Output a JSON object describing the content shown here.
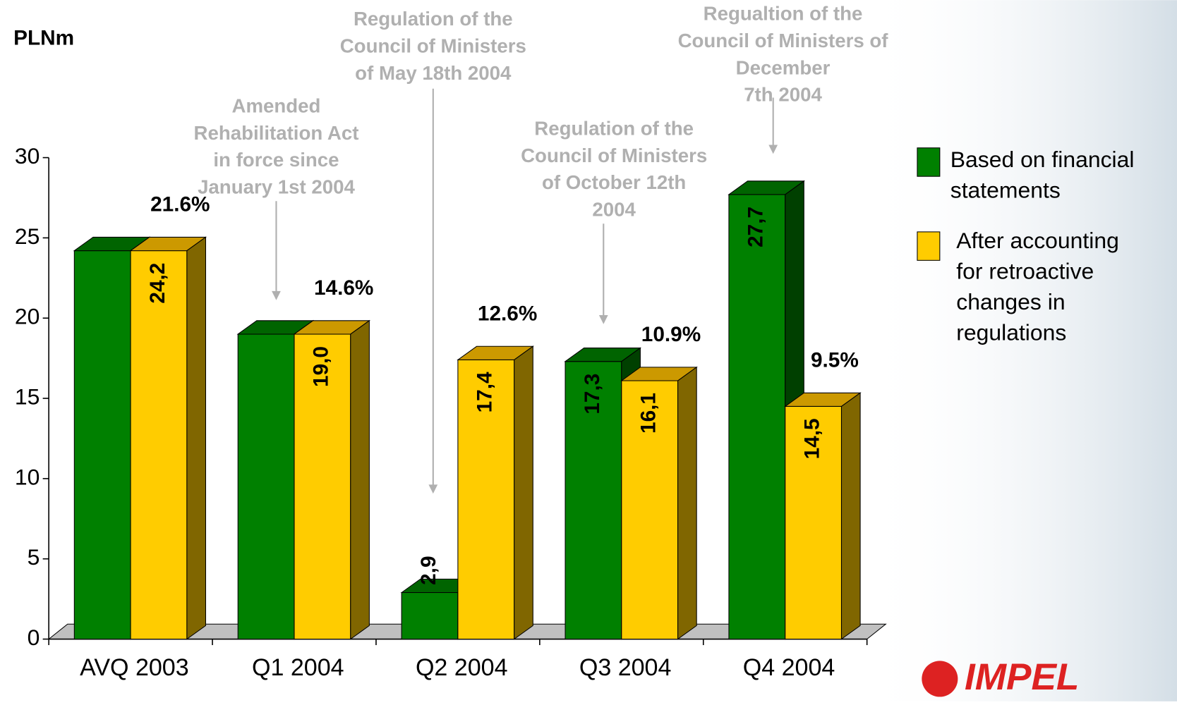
{
  "chart_data": {
    "type": "bar3d",
    "y_label": "PLNm",
    "categories": [
      "AVQ 2003",
      "Q1 2004",
      "Q2 2004",
      "Q3 2004",
      "Q4 2004"
    ],
    "series": [
      {
        "name": "Based on financial statements",
        "color": "#008000",
        "values": [
          24.2,
          19.0,
          2.9,
          17.3,
          27.7
        ],
        "value_labels": [
          null,
          null,
          "2,9",
          "17,3",
          "27,7"
        ]
      },
      {
        "name": "After accounting for retroactive changes in regulations",
        "color": "#ffcc00",
        "values": [
          24.2,
          19.0,
          17.4,
          16.1,
          14.5
        ],
        "value_labels": [
          "24,2",
          "19,0",
          "17,4",
          "16,1",
          "14,5"
        ]
      }
    ],
    "share_labels": [
      "21.6%",
      "14.6%",
      "12.6%",
      "10.9%",
      "9.5%"
    ],
    "notes": [
      {
        "lines": [
          "Amended",
          "Rehabilitation Act",
          "in force since",
          "January 1st 2004"
        ]
      },
      {
        "lines": [
          "Regulation of the",
          "Council of Ministers",
          "of May 18th 2004"
        ]
      },
      {
        "lines": [
          "Regulation of the",
          "Council of Ministers",
          "of October 12th",
          "2004"
        ]
      },
      {
        "lines": [
          "Regualtion of the",
          "Council of Ministers of",
          "December",
          "7th 2004"
        ]
      }
    ],
    "ylim": [
      0,
      30
    ],
    "yticks": [
      0,
      5,
      10,
      15,
      20,
      25,
      30
    ],
    "logo": "IMPEL"
  }
}
